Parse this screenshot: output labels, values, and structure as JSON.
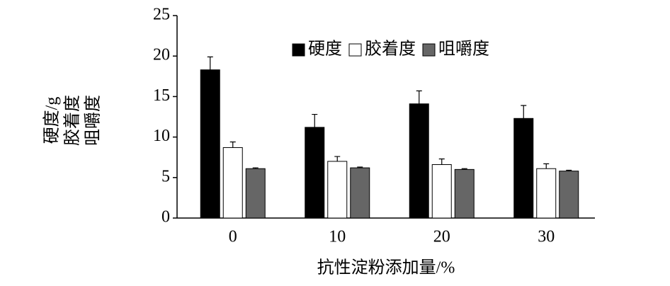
{
  "chart_data": {
    "type": "bar",
    "x_label": "抗性淀粉添加量/%",
    "y_label": [
      "硬度/g",
      "胶着度",
      "咀嚼度"
    ],
    "categories": [
      "0",
      "10",
      "20",
      "30"
    ],
    "series": [
      {
        "name": "硬度",
        "color": "#000000",
        "values": [
          18.3,
          11.2,
          14.1,
          12.3
        ],
        "errors": [
          1.6,
          1.6,
          1.6,
          1.6
        ]
      },
      {
        "name": "胶着度",
        "color": "#ffffff",
        "values": [
          8.7,
          7.0,
          6.6,
          6.1
        ],
        "errors": [
          0.7,
          0.6,
          0.7,
          0.6
        ]
      },
      {
        "name": "咀嚼度",
        "color": "#666666",
        "values": [
          6.1,
          6.2,
          6.0,
          5.8
        ],
        "errors": [
          0.1,
          0.1,
          0.1,
          0.1
        ]
      }
    ],
    "ylim": [
      0,
      25
    ],
    "yticks": [
      0,
      5,
      10,
      15,
      20,
      25
    ],
    "grid": false
  }
}
